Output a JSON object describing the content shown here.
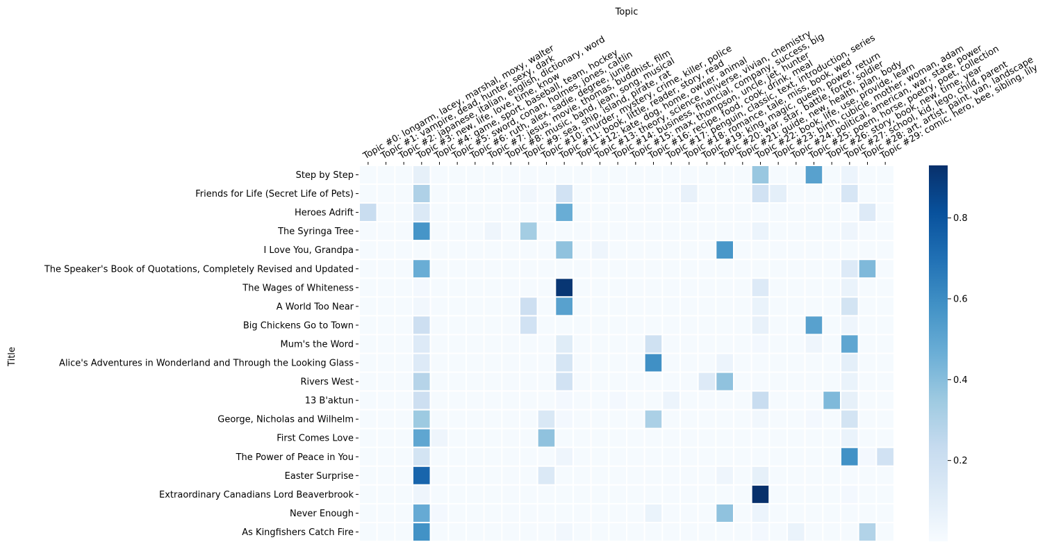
{
  "chart_data": {
    "type": "heatmap",
    "title": "",
    "xlabel": "Topic",
    "ylabel": "Title",
    "x_axis_position": "top",
    "colormap": "Blues",
    "colorbar": {
      "ticks": [
        0.2,
        0.4,
        0.6,
        0.8
      ],
      "vmin": 0.0,
      "vmax": 0.93,
      "placement": "right"
    },
    "columns": [
      "Topic #0: longarm, lacey, marshal, moxy, walter",
      "Topic #1: vampire, dead, hunter, sexy, dark",
      "Topic #2: japanese, italian, english, dictionary, word",
      "Topic #3: new, life, love, time, know",
      "Topic #4: game, sport, baseball, team, hockey",
      "Topic #5: sword, conan, holmes, jones, caitlin",
      "Topic #6: ruth, alex, sadie, degree, junie",
      "Topic #7: jesus, movie, thomas, buddhist, film",
      "Topic #8: music, band, jean, song, musical",
      "Topic #9: sea, ship, island, pirate, rat",
      "Topic #10: murder, mystery, crime, killer, police",
      "Topic #11: book, little, reader, story, read",
      "Topic #12: kate, dog, home, owner, animal",
      "Topic #13: theory, science, universe, vivian, chemistry",
      "Topic #14: business, financial, company, success, big",
      "Topic #15: max, thompson, uncle, jet, hunter",
      "Topic #16: recipe, food, cook, drink, meal",
      "Topic #17: penguin, classic, text, introduction, series",
      "Topic #18: romance, tale, miss, book, wed",
      "Topic #19: king, magic, queen, power, return",
      "Topic #20: war, star, battle, force, soldier",
      "Topic #21: guide, new, health, plan, body",
      "Topic #22: book, life, use, provide, learn",
      "Topic #23: birth, cubicle, mother, woman, adam",
      "Topic #24: political, american, war, state, power",
      "Topic #25: poem, horse, poetry, poet, collection",
      "Topic #26: story, book, new, time, year",
      "Topic #27: school, kid, lego, child, parent",
      "Topic #28: art, artist, paint, van, landscape",
      "Topic #29: comic, hero, bee, sibling, lily"
    ],
    "rows": [
      {
        "title": "Step by Step",
        "values": [
          0.01,
          0.01,
          0.01,
          0.08,
          0.01,
          0.01,
          0.01,
          0.01,
          0.01,
          0.01,
          0.01,
          0.01,
          0.01,
          0.01,
          0.01,
          0.01,
          0.01,
          0.01,
          0.01,
          0.01,
          0.01,
          0.01,
          0.36,
          0.01,
          0.01,
          0.52,
          0.01,
          0.05,
          0.01,
          0.01
        ]
      },
      {
        "title": "Friends for Life (Secret Life of Pets)",
        "values": [
          0.01,
          0.01,
          0.01,
          0.3,
          0.01,
          0.01,
          0.01,
          0.01,
          0.01,
          0.03,
          0.01,
          0.18,
          0.01,
          0.01,
          0.01,
          0.01,
          0.01,
          0.01,
          0.07,
          0.01,
          0.01,
          0.01,
          0.18,
          0.09,
          0.01,
          0.01,
          0.01,
          0.15,
          0.01,
          0.01
        ]
      },
      {
        "title": "Heroes Adrift",
        "values": [
          0.22,
          0.01,
          0.01,
          0.13,
          0.01,
          0.01,
          0.01,
          0.01,
          0.01,
          0.01,
          0.01,
          0.47,
          0.01,
          0.01,
          0.01,
          0.01,
          0.01,
          0.01,
          0.01,
          0.01,
          0.01,
          0.01,
          0.01,
          0.01,
          0.01,
          0.01,
          0.01,
          0.01,
          0.12,
          0.01
        ]
      },
      {
        "title": "The Syringa Tree",
        "values": [
          0.01,
          0.01,
          0.01,
          0.57,
          0.01,
          0.01,
          0.01,
          0.04,
          0.01,
          0.33,
          0.01,
          0.01,
          0.01,
          0.01,
          0.01,
          0.01,
          0.01,
          0.01,
          0.01,
          0.01,
          0.01,
          0.01,
          0.05,
          0.01,
          0.01,
          0.01,
          0.01,
          0.04,
          0.01,
          0.01
        ]
      },
      {
        "title": "I Love You, Grandpa",
        "values": [
          0.01,
          0.01,
          0.01,
          0.01,
          0.01,
          0.01,
          0.01,
          0.01,
          0.01,
          0.01,
          0.01,
          0.38,
          0.01,
          0.04,
          0.01,
          0.01,
          0.01,
          0.01,
          0.01,
          0.01,
          0.56,
          0.01,
          0.01,
          0.01,
          0.01,
          0.01,
          0.01,
          0.01,
          0.01,
          0.01
        ]
      },
      {
        "title": "The Speaker's Book of Quotations, Completely Revised and Updated",
        "values": [
          0.01,
          0.01,
          0.01,
          0.47,
          0.01,
          0.01,
          0.01,
          0.01,
          0.01,
          0.01,
          0.01,
          0.01,
          0.01,
          0.01,
          0.01,
          0.01,
          0.01,
          0.01,
          0.01,
          0.01,
          0.01,
          0.01,
          0.01,
          0.01,
          0.01,
          0.01,
          0.01,
          0.12,
          0.42,
          0.01
        ]
      },
      {
        "title": "The Wages of Whiteness",
        "values": [
          0.01,
          0.01,
          0.01,
          0.02,
          0.01,
          0.01,
          0.01,
          0.01,
          0.01,
          0.01,
          0.01,
          0.91,
          0.01,
          0.01,
          0.01,
          0.01,
          0.01,
          0.01,
          0.01,
          0.01,
          0.01,
          0.01,
          0.12,
          0.01,
          0.01,
          0.01,
          0.01,
          0.06,
          0.01,
          0.01
        ]
      },
      {
        "title": "A World Too Near",
        "values": [
          0.01,
          0.01,
          0.01,
          0.03,
          0.01,
          0.01,
          0.01,
          0.01,
          0.01,
          0.2,
          0.01,
          0.52,
          0.01,
          0.01,
          0.01,
          0.01,
          0.01,
          0.01,
          0.01,
          0.01,
          0.01,
          0.01,
          0.06,
          0.01,
          0.01,
          0.01,
          0.01,
          0.17,
          0.01,
          0.01
        ]
      },
      {
        "title": "Big Chickens Go to Town",
        "values": [
          0.01,
          0.01,
          0.01,
          0.2,
          0.01,
          0.01,
          0.01,
          0.01,
          0.01,
          0.18,
          0.01,
          0.01,
          0.01,
          0.01,
          0.01,
          0.01,
          0.01,
          0.01,
          0.01,
          0.01,
          0.01,
          0.01,
          0.07,
          0.01,
          0.01,
          0.52,
          0.01,
          0.04,
          0.01,
          0.01
        ]
      },
      {
        "title": "Mum's the Word",
        "values": [
          0.01,
          0.01,
          0.01,
          0.12,
          0.01,
          0.01,
          0.01,
          0.01,
          0.01,
          0.01,
          0.01,
          0.11,
          0.01,
          0.01,
          0.01,
          0.01,
          0.19,
          0.01,
          0.01,
          0.01,
          0.01,
          0.01,
          0.02,
          0.01,
          0.01,
          0.04,
          0.01,
          0.5,
          0.01,
          0.01
        ]
      },
      {
        "title": "Alice's Adventures in Wonderland and Through the Looking Glass",
        "values": [
          0.01,
          0.01,
          0.01,
          0.12,
          0.01,
          0.01,
          0.01,
          0.01,
          0.01,
          0.01,
          0.01,
          0.16,
          0.01,
          0.01,
          0.01,
          0.01,
          0.59,
          0.01,
          0.01,
          0.01,
          0.05,
          0.01,
          0.01,
          0.01,
          0.01,
          0.01,
          0.01,
          0.09,
          0.01,
          0.01
        ]
      },
      {
        "title": "Rivers West",
        "values": [
          0.01,
          0.01,
          0.01,
          0.28,
          0.01,
          0.01,
          0.01,
          0.01,
          0.01,
          0.01,
          0.01,
          0.18,
          0.01,
          0.01,
          0.01,
          0.01,
          0.01,
          0.01,
          0.01,
          0.12,
          0.38,
          0.01,
          0.01,
          0.01,
          0.01,
          0.01,
          0.01,
          0.06,
          0.01,
          0.01
        ]
      },
      {
        "title": "13 B'aktun",
        "values": [
          0.01,
          0.01,
          0.01,
          0.2,
          0.01,
          0.01,
          0.01,
          0.01,
          0.01,
          0.01,
          0.01,
          0.02,
          0.01,
          0.01,
          0.02,
          0.01,
          0.01,
          0.05,
          0.01,
          0.01,
          0.01,
          0.01,
          0.22,
          0.01,
          0.01,
          0.01,
          0.42,
          0.08,
          0.01,
          0.01
        ]
      },
      {
        "title": "George, Nicholas and Wilhelm",
        "values": [
          0.01,
          0.01,
          0.01,
          0.35,
          0.01,
          0.01,
          0.01,
          0.01,
          0.01,
          0.01,
          0.14,
          0.02,
          0.01,
          0.01,
          0.01,
          0.01,
          0.31,
          0.01,
          0.01,
          0.01,
          0.01,
          0.01,
          0.03,
          0.01,
          0.01,
          0.02,
          0.01,
          0.17,
          0.01,
          0.01
        ]
      },
      {
        "title": "First Comes Love",
        "values": [
          0.01,
          0.01,
          0.01,
          0.5,
          0.04,
          0.01,
          0.01,
          0.01,
          0.01,
          0.01,
          0.38,
          0.01,
          0.01,
          0.01,
          0.01,
          0.01,
          0.01,
          0.01,
          0.01,
          0.01,
          0.01,
          0.01,
          0.01,
          0.01,
          0.01,
          0.01,
          0.01,
          0.06,
          0.01,
          0.01
        ]
      },
      {
        "title": "The Power of Peace in You",
        "values": [
          0.01,
          0.01,
          0.01,
          0.17,
          0.01,
          0.01,
          0.01,
          0.01,
          0.01,
          0.01,
          0.01,
          0.04,
          0.01,
          0.01,
          0.01,
          0.01,
          0.01,
          0.01,
          0.01,
          0.01,
          0.01,
          0.01,
          0.01,
          0.01,
          0.01,
          0.01,
          0.01,
          0.58,
          0.02,
          0.18
        ]
      },
      {
        "title": "Easter Surprise",
        "values": [
          0.01,
          0.01,
          0.01,
          0.74,
          0.01,
          0.01,
          0.01,
          0.01,
          0.01,
          0.01,
          0.13,
          0.01,
          0.01,
          0.01,
          0.01,
          0.01,
          0.01,
          0.01,
          0.01,
          0.01,
          0.04,
          0.01,
          0.08,
          0.01,
          0.01,
          0.01,
          0.01,
          0.01,
          0.01,
          0.01
        ]
      },
      {
        "title": "Extraordinary Canadians Lord Beaverbrook",
        "values": [
          0.01,
          0.01,
          0.01,
          0.04,
          0.01,
          0.01,
          0.01,
          0.01,
          0.01,
          0.01,
          0.01,
          0.01,
          0.01,
          0.01,
          0.01,
          0.01,
          0.01,
          0.01,
          0.01,
          0.01,
          0.01,
          0.01,
          0.93,
          0.01,
          0.01,
          0.01,
          0.01,
          0.02,
          0.01,
          0.01
        ]
      },
      {
        "title": "Never Enough",
        "values": [
          0.01,
          0.01,
          0.01,
          0.48,
          0.02,
          0.01,
          0.01,
          0.01,
          0.01,
          0.01,
          0.01,
          0.01,
          0.01,
          0.01,
          0.01,
          0.01,
          0.06,
          0.01,
          0.01,
          0.01,
          0.38,
          0.01,
          0.05,
          0.01,
          0.01,
          0.01,
          0.01,
          0.01,
          0.01,
          0.01
        ]
      },
      {
        "title": "As Kingfishers Catch Fire",
        "values": [
          0.01,
          0.01,
          0.01,
          0.58,
          0.01,
          0.01,
          0.01,
          0.01,
          0.01,
          0.01,
          0.01,
          0.03,
          0.01,
          0.01,
          0.01,
          0.01,
          0.01,
          0.01,
          0.01,
          0.01,
          0.01,
          0.01,
          0.02,
          0.01,
          0.06,
          0.01,
          0.01,
          0.01,
          0.29,
          0.01
        ]
      }
    ]
  }
}
